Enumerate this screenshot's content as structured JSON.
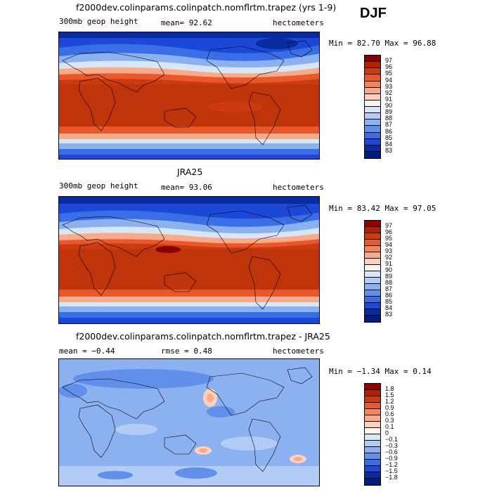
{
  "season": "DJF",
  "panels": [
    {
      "title": "f2000dev.colinparams.colinpatch.nomflrtm.trapez (yrs 1-9)",
      "left": "300mb geop height",
      "middle": "mean=  92.62",
      "right": "hectometers",
      "minmax": "Min =  82.70 Max =  96.88",
      "colorbar": [
        "97",
        "96",
        "95",
        "94",
        "93",
        "92",
        "91",
        "90",
        "89",
        "88",
        "87",
        "86",
        "85",
        "84",
        "83"
      ],
      "colors": [
        "#8b0000",
        "#b22000",
        "#cc3a10",
        "#e8582a",
        "#f4845a",
        "#f8ab8a",
        "#fbd1bd",
        "#fdf5ec",
        "#d8e6fa",
        "#b3ccf5",
        "#8cb1f0",
        "#6090ec",
        "#3a6ee6",
        "#1c48d8",
        "#0a2aa0",
        "#001c80"
      ]
    },
    {
      "title": "JRA25",
      "left": "300mb geop height",
      "middle": "mean=  93.06",
      "right": "hectometers",
      "minmax": "Min =  83.42 Max =  97.05",
      "colorbar": [
        "97",
        "96",
        "95",
        "94",
        "93",
        "92",
        "91",
        "90",
        "89",
        "88",
        "87",
        "86",
        "85",
        "84",
        "83"
      ],
      "colors": [
        "#8b0000",
        "#b22000",
        "#cc3a10",
        "#e8582a",
        "#f4845a",
        "#f8ab8a",
        "#fbd1bd",
        "#fdf5ec",
        "#d8e6fa",
        "#b3ccf5",
        "#8cb1f0",
        "#6090ec",
        "#3a6ee6",
        "#1c48d8",
        "#0a2aa0",
        "#001c80"
      ]
    },
    {
      "title": "f2000dev.colinparams.colinpatch.nomflrtm.trapez - JRA25",
      "left": "mean =  −0.44",
      "middle": "rmse =   0.48",
      "right": "hectometers",
      "minmax": "Min =  −1.34 Max =   0.14",
      "colorbar": [
        "1.8",
        "1.5",
        "1.2",
        "0.9",
        "0.6",
        "0.3",
        "0.1",
        "0",
        "−0.1",
        "−0.3",
        "−0.6",
        "−0.9",
        "−1.2",
        "−1.5",
        "−1.8"
      ],
      "colors": [
        "#8b0000",
        "#b22000",
        "#cc3a10",
        "#e8582a",
        "#f4845a",
        "#f8ab8a",
        "#fbd1bd",
        "#fdf5ec",
        "#d8e6fa",
        "#b3ccf5",
        "#8cb1f0",
        "#6090ec",
        "#3a6ee6",
        "#1c48d8",
        "#0a2aa0",
        "#001c80"
      ]
    }
  ]
}
